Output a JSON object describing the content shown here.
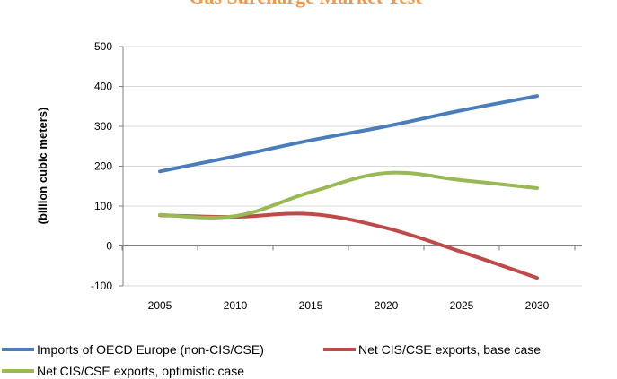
{
  "chart_data": {
    "type": "line",
    "title": "Gas Surcharge Market Test",
    "xlabel": "",
    "ylabel": "(billion cubic meters)",
    "x": [
      2005,
      2010,
      2015,
      2020,
      2025,
      2030
    ],
    "xlim": [
      2005,
      2030
    ],
    "ylim": [
      -100,
      500
    ],
    "yticks": [
      -100,
      0,
      100,
      200,
      300,
      400,
      500
    ],
    "grid": true,
    "legend_position": "bottom",
    "series": [
      {
        "name": "Imports of OECD Europe (non-CIS/CSE)",
        "color": "#4a7ebb",
        "values": [
          187,
          225,
          265,
          300,
          340,
          376
        ]
      },
      {
        "name": "Net CIS/CSE exports, base case",
        "color": "#be4b48",
        "values": [
          77,
          73,
          80,
          45,
          -15,
          -80
        ]
      },
      {
        "name": "Net CIS/CSE exports, optimistic case",
        "color": "#98b954",
        "values": [
          78,
          75,
          135,
          183,
          165,
          145
        ]
      }
    ]
  }
}
